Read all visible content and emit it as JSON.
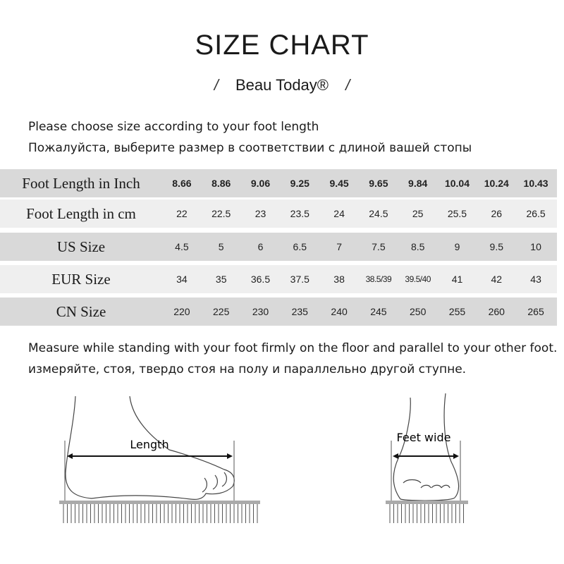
{
  "header": {
    "title": "SIZE CHART",
    "brand": "Beau Today®",
    "slash_left": "/",
    "slash_right": "/"
  },
  "intro": {
    "line_en": "Please choose size according to your foot length",
    "line_ru": "Пожалуйста, выберите размер в соответствии с длиной вашей стопы"
  },
  "table": {
    "rows": [
      {
        "label": "Foot Length in Inch",
        "values": [
          "8.66",
          "8.86",
          "9.06",
          "9.25",
          "9.45",
          "9.65",
          "9.84",
          "10.04",
          "10.24",
          "10.43"
        ]
      },
      {
        "label": "Foot Length in cm",
        "values": [
          "22",
          "22.5",
          "23",
          "23.5",
          "24",
          "24.5",
          "25",
          "25.5",
          "26",
          "26.5"
        ]
      },
      {
        "label": "US Size",
        "values": [
          "4.5",
          "5",
          "6",
          "6.5",
          "7",
          "7.5",
          "8.5",
          "9",
          "9.5",
          "10"
        ]
      },
      {
        "label": "EUR Size",
        "values": [
          "34",
          "35",
          "36.5",
          "37.5",
          "38",
          "38.5/39",
          "39.5/40",
          "41",
          "42",
          "43"
        ]
      },
      {
        "label": "CN Size",
        "values": [
          "220",
          "225",
          "230",
          "235",
          "240",
          "245",
          "250",
          "255",
          "260",
          "265"
        ]
      }
    ]
  },
  "note": {
    "line_en": "Measure while standing with your foot firmly on the floor and parallel to your other foot.",
    "line_ru": "измеряйте, стоя, твердо стоя на полу и параллельно другой ступне."
  },
  "diagrams": {
    "length_label": "Length",
    "width_label": "Feet wide"
  }
}
